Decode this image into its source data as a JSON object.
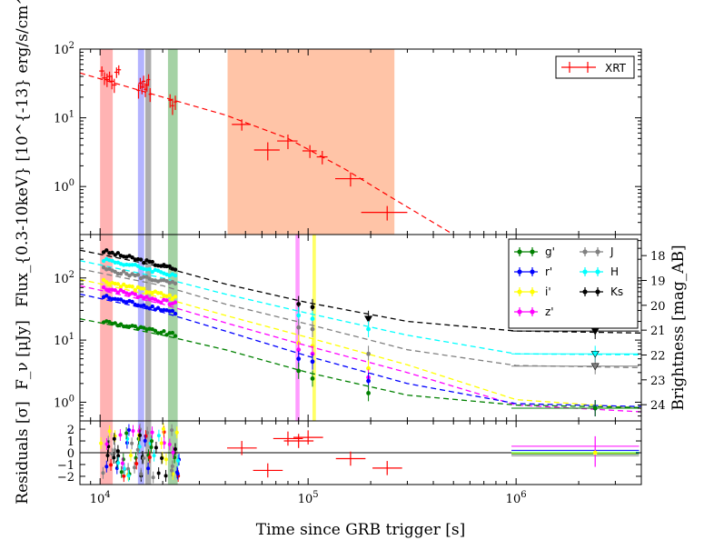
{
  "chart_data": [
    {
      "id": "top",
      "type": "scatter",
      "ylabel": "Flux_{0.3-10keV} [10^{-13} erg/s/cm^2]",
      "xscale": "log",
      "yscale": "log",
      "xlim": [
        8000,
        4000000
      ],
      "ylim": [
        0.2,
        100
      ],
      "yticks": [
        {
          "v": 1,
          "label": "10^0"
        },
        {
          "v": 10,
          "label": "10^1"
        },
        {
          "v": 100,
          "label": "10^2"
        }
      ],
      "legend": {
        "position": "top-right",
        "entries": [
          {
            "name": "XRT",
            "color": "#ff0000"
          }
        ]
      },
      "series": [
        {
          "name": "XRT",
          "color": "#ff0000",
          "points": [
            [
              10200,
              48,
              300,
              8
            ],
            [
              10500,
              38,
              300,
              8
            ],
            [
              10800,
              36,
              300,
              8
            ],
            [
              11100,
              40,
              300,
              7
            ],
            [
              11400,
              34,
              300,
              8
            ],
            [
              11700,
              30,
              300,
              7
            ],
            [
              12000,
              46,
              300,
              8
            ],
            [
              12300,
              50,
              300,
              8
            ],
            [
              15300,
              25,
              300,
              6
            ],
            [
              15600,
              32,
              300,
              6
            ],
            [
              15900,
              28,
              300,
              6
            ],
            [
              16200,
              34,
              300,
              7
            ],
            [
              16500,
              26,
              300,
              6
            ],
            [
              16800,
              30,
              300,
              6
            ],
            [
              17100,
              36,
              300,
              7
            ],
            [
              17400,
              22,
              300,
              5
            ],
            [
              21700,
              18,
              400,
              4
            ],
            [
              22300,
              15,
              400,
              4
            ],
            [
              23000,
              17,
              400,
              4
            ],
            [
              48000,
              8,
              5000,
              1.5
            ],
            [
              64000,
              3.4,
              9000,
              1.0
            ],
            [
              80000,
              4.6,
              9000,
              1.1
            ],
            [
              102000,
              3.3,
              8000,
              0.7
            ],
            [
              117000,
              2.7,
              7000,
              0.6
            ],
            [
              160000,
              1.3,
              25000,
              0.3
            ],
            [
              240000,
              0.42,
              60000,
              0.1
            ]
          ]
        }
      ],
      "model": {
        "color": "#ff0000",
        "points": [
          [
            8000,
            45
          ],
          [
            20000,
            20
          ],
          [
            40000,
            11
          ],
          [
            80000,
            5
          ],
          [
            150000,
            1.8
          ],
          [
            250000,
            0.7
          ],
          [
            500000,
            0.2
          ]
        ]
      }
    },
    {
      "id": "middle",
      "type": "scatter",
      "ylabel": "F_ν [μJy]",
      "y2label": "Brightness [mag_AB]",
      "xscale": "log",
      "yscale": "log",
      "xlim": [
        8000,
        4000000
      ],
      "ylim": [
        0.5,
        500
      ],
      "yticks": [
        {
          "v": 1,
          "label": "10^0"
        },
        {
          "v": 10,
          "label": "10^1"
        },
        {
          "v": 100,
          "label": "10^2"
        }
      ],
      "y2ticks": [
        "18",
        "19",
        "20",
        "21",
        "22",
        "23",
        "24"
      ],
      "legend": {
        "position": "top-right",
        "entries": [
          {
            "name": "g'",
            "color": "#008000"
          },
          {
            "name": "r'",
            "color": "#0000ff"
          },
          {
            "name": "i'",
            "color": "#ffff00"
          },
          {
            "name": "z'",
            "color": "#ff00ff"
          },
          {
            "name": "J",
            "color": "#808080"
          },
          {
            "name": "H",
            "color": "#00ffff"
          },
          {
            "name": "Ks",
            "color": "#000000"
          }
        ]
      },
      "series": [
        {
          "name": "Ks",
          "color": "#000000",
          "early": [
            270,
            140
          ],
          "late": [
            [
              90000,
              38
            ],
            [
              105000,
              34
            ],
            [
              195000,
              22
            ],
            [
              2400000,
              14
            ]
          ],
          "model": [
            [
              8000,
              280
            ],
            [
              20000,
              150
            ],
            [
              40000,
              80
            ],
            [
              100000,
              40
            ],
            [
              300000,
              20
            ],
            [
              1000000,
              14
            ],
            [
              4000000,
              13
            ]
          ]
        },
        {
          "name": "H",
          "color": "#00ffff",
          "early": [
            200,
            110
          ],
          "late": [
            [
              90000,
              25
            ],
            [
              105000,
              22
            ],
            [
              195000,
              15
            ],
            [
              2400000,
              6
            ]
          ],
          "model": [
            [
              8000,
              190
            ],
            [
              20000,
              100
            ],
            [
              40000,
              55
            ],
            [
              100000,
              27
            ],
            [
              300000,
              12
            ],
            [
              1000000,
              6
            ],
            [
              4000000,
              5.8
            ]
          ]
        },
        {
          "name": "J",
          "color": "#808080",
          "early": [
            140,
            80
          ],
          "late": [
            [
              90000,
              16
            ],
            [
              105000,
              15
            ],
            [
              195000,
              6
            ],
            [
              2400000,
              3.8
            ]
          ],
          "model": [
            [
              8000,
              140
            ],
            [
              20000,
              75
            ],
            [
              40000,
              38
            ],
            [
              100000,
              18
            ],
            [
              300000,
              7
            ],
            [
              1000000,
              3.9
            ],
            [
              4000000,
              3.6
            ]
          ]
        },
        {
          "name": "i'",
          "color": "#ffff00",
          "early": [
            90,
            48
          ],
          "late": [
            [
              90000,
              9
            ],
            [
              105000,
              8
            ],
            [
              195000,
              3.5
            ],
            [
              2400000,
              0.8
            ]
          ],
          "model": [
            [
              8000,
              95
            ],
            [
              20000,
              48
            ],
            [
              40000,
              25
            ],
            [
              100000,
              11
            ],
            [
              300000,
              4
            ],
            [
              1000000,
              1.1
            ],
            [
              4000000,
              0.8
            ]
          ]
        },
        {
          "name": "z'",
          "color": "#ff00ff",
          "early": [
            70,
            38
          ],
          "late": [
            [
              90000,
              7
            ],
            [
              105000,
              6
            ],
            [
              195000,
              2.5
            ],
            [
              2400000,
              0.8
            ]
          ],
          "model": [
            [
              8000,
              75
            ],
            [
              20000,
              38
            ],
            [
              40000,
              19
            ],
            [
              100000,
              8
            ],
            [
              300000,
              3
            ],
            [
              1000000,
              0.9
            ],
            [
              4000000,
              0.7
            ]
          ]
        },
        {
          "name": "r'",
          "color": "#0000ff",
          "early": [
            50,
            28
          ],
          "late": [
            [
              90000,
              5
            ],
            [
              105000,
              4.5
            ],
            [
              195000,
              2.2
            ],
            [
              2400000,
              0.8
            ]
          ],
          "model": [
            [
              8000,
              55
            ],
            [
              20000,
              28
            ],
            [
              40000,
              14
            ],
            [
              100000,
              5.5
            ],
            [
              300000,
              2
            ],
            [
              1000000,
              0.95
            ],
            [
              4000000,
              0.85
            ]
          ]
        },
        {
          "name": "g'",
          "color": "#008000",
          "early": [
            20,
            12
          ],
          "late": [
            [
              90000,
              3.2
            ],
            [
              105000,
              2.4
            ],
            [
              195000,
              1.4
            ],
            [
              2400000,
              0.8
            ]
          ],
          "model": [
            [
              8000,
              22
            ],
            [
              20000,
              12
            ],
            [
              40000,
              7
            ],
            [
              100000,
              3
            ],
            [
              300000,
              1.3
            ],
            [
              1000000,
              0.9
            ],
            [
              4000000,
              0.82
            ]
          ]
        }
      ]
    },
    {
      "id": "bottom",
      "type": "scatter",
      "ylabel": "Residuals [σ]",
      "xlabel": "Time since GRB trigger [s]",
      "xscale": "log",
      "xlim": [
        8000,
        4000000
      ],
      "ylim": [
        -2.7,
        2.7
      ],
      "yticks": [
        {
          "v": 2,
          "label": "2"
        },
        {
          "v": 1,
          "label": "1"
        },
        {
          "v": 0,
          "label": "0"
        },
        {
          "v": -1,
          "label": "−1"
        },
        {
          "v": -2,
          "label": "−2"
        }
      ],
      "xticks": [
        {
          "v": 10000,
          "label": "10^4"
        },
        {
          "v": 100000,
          "label": "10^5"
        },
        {
          "v": 1000000,
          "label": "10^6"
        }
      ],
      "xrt_residuals": [
        [
          48000,
          0.4
        ],
        [
          64000,
          -1.5
        ],
        [
          80000,
          1.2
        ],
        [
          90000,
          1.0
        ],
        [
          100000,
          1.3
        ],
        [
          160000,
          -0.5
        ],
        [
          240000,
          -1.3
        ]
      ],
      "late_residuals_x": 2400000
    }
  ],
  "bands": [
    {
      "from": 10000,
      "to": 11500,
      "color": "#ff9a9a",
      "alpha": 0.75
    },
    {
      "from": 15200,
      "to": 16300,
      "color": "#9a9aff",
      "alpha": 0.75
    },
    {
      "from": 16500,
      "to": 17600,
      "color": "#8a8a8a",
      "alpha": 0.7
    },
    {
      "from": 21200,
      "to": 23600,
      "color": "#7fbf7f",
      "alpha": 0.7
    },
    {
      "from": 41000,
      "to": 260000,
      "color": "#ffb08a",
      "alpha": 0.75,
      "panel": "top"
    },
    {
      "from": 87000,
      "to": 91000,
      "color": "#ff66ff",
      "alpha": 0.65,
      "panel": "mid"
    },
    {
      "from": 105000,
      "to": 109000,
      "color": "#ffff33",
      "alpha": 0.75,
      "panel": "mid"
    }
  ]
}
